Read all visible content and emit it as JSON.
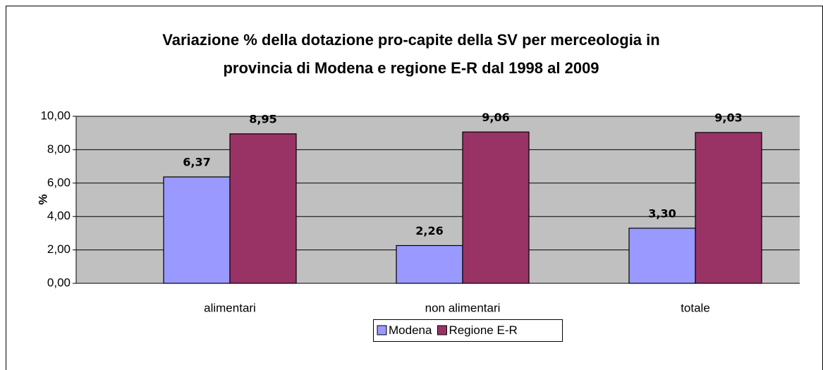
{
  "chart_data": {
    "type": "bar",
    "title": [
      "Variazione % della dotazione pro-capite della SV per merceologia in",
      "provincia di Modena e regione E-R dal 1998 al 2009"
    ],
    "y_label": "%",
    "categories": [
      "alimentari",
      "non alimentari",
      "totale"
    ],
    "series": [
      {
        "name": "Modena",
        "color": "#9999ff",
        "values": [
          6.37,
          2.26,
          3.3
        ],
        "value_labels": [
          "6,37",
          "2,26",
          "3,30"
        ]
      },
      {
        "name": "Regione E-R",
        "color": "#993366",
        "values": [
          8.95,
          9.06,
          9.03
        ],
        "value_labels": [
          "8,95",
          "9,06",
          "9,03"
        ]
      }
    ],
    "ylim": [
      0,
      10
    ],
    "yticks": [
      {
        "value": 0,
        "label": "0,00"
      },
      {
        "value": 2,
        "label": "2,00"
      },
      {
        "value": 4,
        "label": "4,00"
      },
      {
        "value": 6,
        "label": "6,00"
      },
      {
        "value": 8,
        "label": "8,00"
      },
      {
        "value": 10,
        "label": "10,00"
      }
    ],
    "grid": true,
    "legend": "bottom"
  }
}
